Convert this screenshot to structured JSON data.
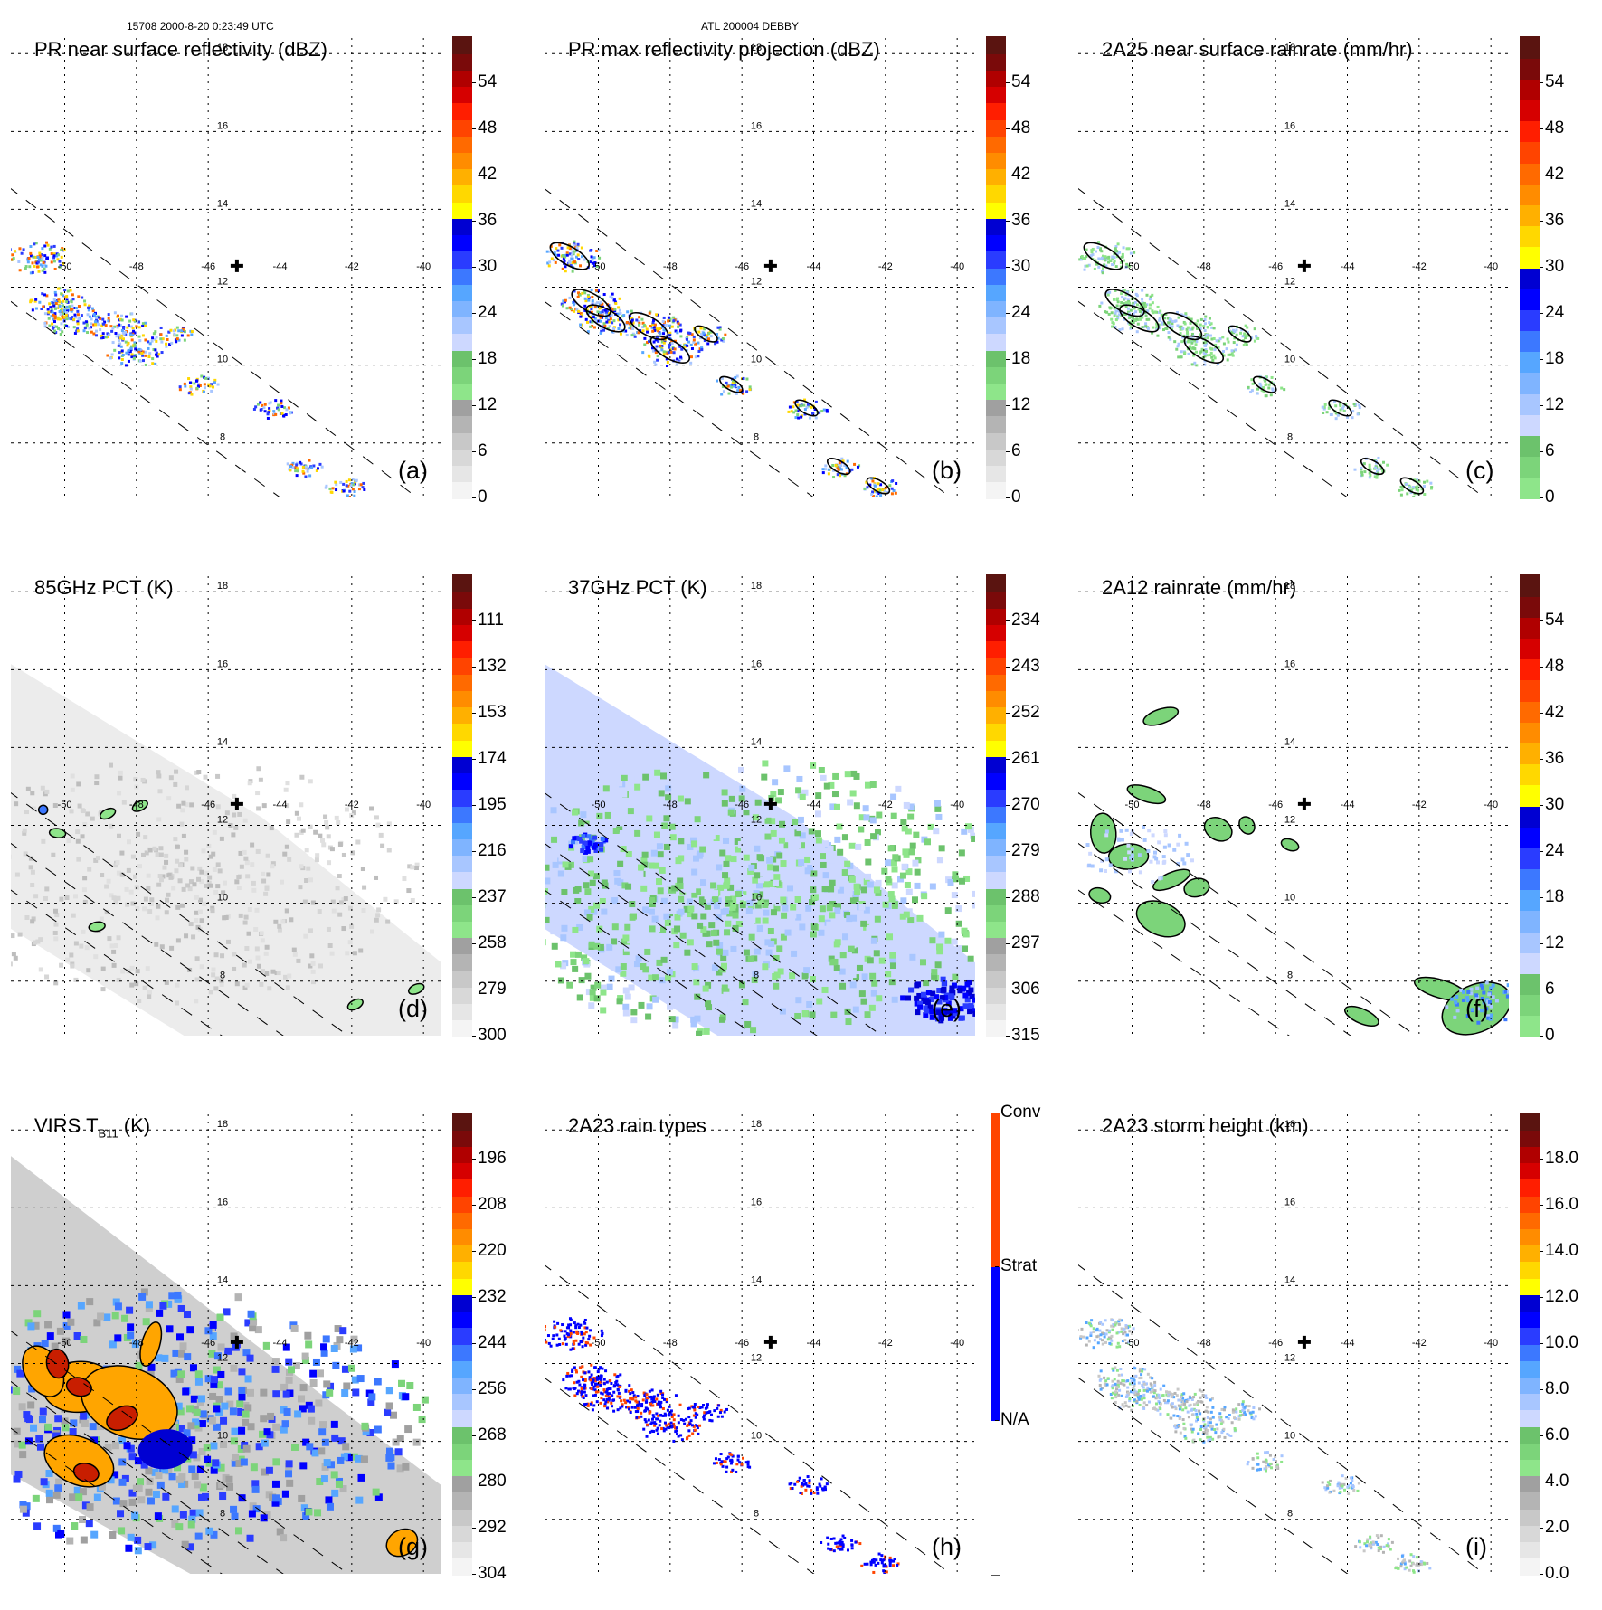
{
  "header": {
    "orbit_time": "15708 2000-8-20 0:23:49 UTC",
    "storm": "ATL 200004 DEBBY"
  },
  "map": {
    "lon_ticks": [
      "-50",
      "-48",
      "-46",
      "-44",
      "-42",
      "-40"
    ],
    "lat_ticks": [
      "18",
      "16",
      "14",
      "12",
      "10",
      "8"
    ],
    "center_marker": "storm-center-cross",
    "lon_range": [
      -51.5,
      -39.5
    ],
    "lat_range": [
      6.6,
      18.4
    ]
  },
  "panels": [
    {
      "id": "a",
      "label": "(a)",
      "title": "PR near surface reflectivity (dBZ)",
      "ticks": [
        "54",
        "48",
        "42",
        "36",
        "30",
        "24",
        "18",
        "12",
        "6",
        "0"
      ],
      "scale": "dbz",
      "swath": "pr",
      "field": "pr_refl"
    },
    {
      "id": "b",
      "label": "(b)",
      "title": "PR max reflectivity projection (dBZ)",
      "ticks": [
        "54",
        "48",
        "42",
        "36",
        "30",
        "24",
        "18",
        "12",
        "6",
        "0"
      ],
      "scale": "dbz",
      "swath": "pr",
      "field": "pr_max"
    },
    {
      "id": "c",
      "label": "(c)",
      "title": "2A25 near surface rainrate (mm/hr)",
      "ticks": [
        "54",
        "48",
        "42",
        "36",
        "30",
        "24",
        "18",
        "12",
        "6",
        "0"
      ],
      "scale": "rain",
      "swath": "pr",
      "field": "pr_rain"
    },
    {
      "id": "d",
      "label": "(d)",
      "title": "85GHz PCT (K)",
      "ticks": [
        "111",
        "132",
        "153",
        "174",
        "195",
        "216",
        "237",
        "258",
        "279",
        "300"
      ],
      "scale": "dbz",
      "swath": "tmi",
      "field": "pct85"
    },
    {
      "id": "e",
      "label": "(e)",
      "title": "37GHz PCT (K)",
      "ticks": [
        "234",
        "243",
        "252",
        "261",
        "270",
        "279",
        "288",
        "297",
        "306",
        "315"
      ],
      "scale": "dbz",
      "swath": "tmi",
      "field": "pct37"
    },
    {
      "id": "f",
      "label": "(f)",
      "title": "2A12 rainrate (mm/hr)",
      "ticks": [
        "54",
        "48",
        "42",
        "36",
        "30",
        "24",
        "18",
        "12",
        "6",
        "0"
      ],
      "scale": "rain",
      "swath": "none",
      "field": "tmi_rain"
    },
    {
      "id": "g",
      "label": "(g)",
      "title": "VIRS T",
      "title_sub": "B11",
      "title_suffix": " (K)",
      "ticks": [
        "196",
        "208",
        "220",
        "232",
        "244",
        "256",
        "268",
        "280",
        "292",
        "304"
      ],
      "scale": "dbz",
      "swath": "virs",
      "field": "virs"
    },
    {
      "id": "h",
      "label": "(h)",
      "title": "2A23 rain types",
      "ticks": [
        "Conv",
        "Strat",
        "N/A"
      ],
      "scale": "types",
      "swath": "pr",
      "field": "types"
    },
    {
      "id": "i",
      "label": "(i)",
      "title": "2A23 storm height (km)",
      "ticks": [
        "18.0",
        "16.0",
        "14.0",
        "12.0",
        "10.0",
        "8.0",
        "6.0",
        "4.0",
        "2.0",
        "0.0"
      ],
      "scale": "dbz",
      "swath": "pr",
      "field": "height"
    }
  ],
  "colors": {
    "dbz_scale": [
      "#f4f4f4",
      "#e6e6e6",
      "#d8d8d8",
      "#c8c8c8",
      "#b4b4b4",
      "#a0a0a0",
      "#8ee58a",
      "#7cd47a",
      "#6cc26c",
      "#cdd8ff",
      "#a8c6ff",
      "#7fb4ff",
      "#56a6ff",
      "#3c78ff",
      "#2a3cff",
      "#0000ff",
      "#0000d2",
      "#ffff00",
      "#ffd800",
      "#ffb000",
      "#ff8c00",
      "#ff6a00",
      "#ff4400",
      "#ff1e00",
      "#d60000",
      "#b00000",
      "#7a0a0a",
      "#5a1410"
    ],
    "rain_scale": [
      "#8ee58a",
      "#7cd47a",
      "#6cc26c",
      "#cdd8ff",
      "#a8c6ff",
      "#7fb4ff",
      "#56a6ff",
      "#3c78ff",
      "#2a3cff",
      "#0000ff",
      "#0000d2",
      "#ffff00",
      "#ffd800",
      "#ffb000",
      "#ff8c00",
      "#ff6a00",
      "#ff4400",
      "#ff1e00",
      "#d60000",
      "#b00000",
      "#7a0a0a",
      "#5a1410"
    ],
    "types_scale": {
      "Conv": "#ff4500",
      "Strat": "#0000ff",
      "N/A": "#ffffff"
    }
  }
}
